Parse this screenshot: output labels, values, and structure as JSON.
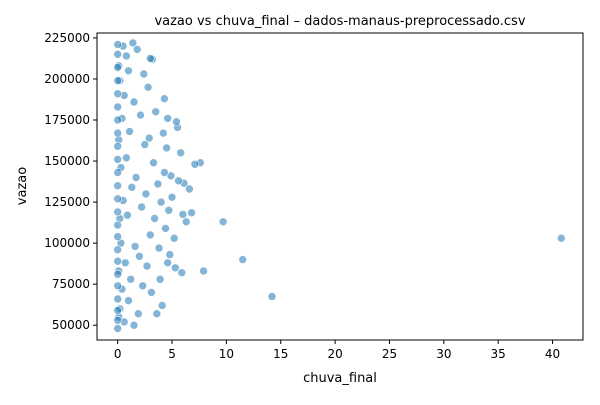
{
  "chart_data": {
    "type": "scatter",
    "title": "vazao vs chuva_final – dados-manaus-preprocessado.csv",
    "xlabel": "chuva_final",
    "ylabel": "vazao",
    "xlim": [
      -1.9,
      42.8
    ],
    "ylim": [
      41000,
      228000
    ],
    "xticks": [
      0,
      5,
      10,
      15,
      20,
      25,
      30,
      35,
      40
    ],
    "yticks": [
      50000,
      75000,
      100000,
      125000,
      150000,
      175000,
      200000,
      225000
    ],
    "grid": false,
    "color": "#1f77b4",
    "series": [
      {
        "points": [
          [
            40.8,
            103000
          ],
          [
            14.2,
            67500
          ],
          [
            11.5,
            90000
          ],
          [
            9.7,
            113000
          ],
          [
            7.9,
            83000
          ],
          [
            7.6,
            149000
          ],
          [
            7.1,
            148000
          ],
          [
            6.8,
            118500
          ],
          [
            6.6,
            133000
          ],
          [
            6.3,
            113000
          ],
          [
            6.1,
            136500
          ],
          [
            6.0,
            117500
          ],
          [
            5.9,
            82000
          ],
          [
            5.8,
            155000
          ],
          [
            5.6,
            138000
          ],
          [
            5.5,
            170500
          ],
          [
            5.4,
            174000
          ],
          [
            5.3,
            85000
          ],
          [
            5.2,
            103000
          ],
          [
            5.0,
            128000
          ],
          [
            4.9,
            141000
          ],
          [
            4.8,
            93000
          ],
          [
            4.7,
            120000
          ],
          [
            4.6,
            176000
          ],
          [
            4.6,
            88000
          ],
          [
            4.5,
            158000
          ],
          [
            4.4,
            109000
          ],
          [
            4.3,
            188000
          ],
          [
            4.3,
            143000
          ],
          [
            4.2,
            167000
          ],
          [
            4.1,
            62000
          ],
          [
            4.0,
            125000
          ],
          [
            3.9,
            78000
          ],
          [
            3.8,
            97000
          ],
          [
            3.7,
            136000
          ],
          [
            3.6,
            57000
          ],
          [
            3.5,
            180000
          ],
          [
            3.4,
            115000
          ],
          [
            3.3,
            149000
          ],
          [
            3.2,
            212000
          ],
          [
            3.1,
            70000
          ],
          [
            3.0,
            212500
          ],
          [
            3.0,
            105000
          ],
          [
            2.9,
            164000
          ],
          [
            2.8,
            195000
          ],
          [
            2.7,
            86000
          ],
          [
            2.6,
            130000
          ],
          [
            2.5,
            160000
          ],
          [
            2.4,
            203000
          ],
          [
            2.3,
            74000
          ],
          [
            2.2,
            122000
          ],
          [
            2.1,
            178000
          ],
          [
            2.0,
            92000
          ],
          [
            1.9,
            57000
          ],
          [
            1.8,
            218000
          ],
          [
            1.7,
            140000
          ],
          [
            1.6,
            98000
          ],
          [
            1.5,
            50000
          ],
          [
            1.5,
            186000
          ],
          [
            1.4,
            222000
          ],
          [
            1.3,
            134000
          ],
          [
            1.2,
            78000
          ],
          [
            1.1,
            168000
          ],
          [
            1.0,
            205000
          ],
          [
            1.0,
            65000
          ],
          [
            0.9,
            117000
          ],
          [
            0.8,
            152000
          ],
          [
            0.8,
            214000
          ],
          [
            0.7,
            88000
          ],
          [
            0.6,
            190000
          ],
          [
            0.6,
            52000
          ],
          [
            0.5,
            126000
          ],
          [
            0.5,
            220000
          ],
          [
            0.4,
            72000
          ],
          [
            0.4,
            176000
          ],
          [
            0.3,
            100000
          ],
          [
            0.3,
            146000
          ],
          [
            0.2,
            60000
          ],
          [
            0.2,
            199000
          ],
          [
            0.2,
            115000
          ],
          [
            0.1,
            83000
          ],
          [
            0.1,
            163000
          ],
          [
            0.1,
            55000
          ],
          [
            0.1,
            208000
          ],
          [
            0,
            48000
          ],
          [
            0,
            53000
          ],
          [
            0,
            59000
          ],
          [
            0,
            66000
          ],
          [
            0,
            74000
          ],
          [
            0,
            81000
          ],
          [
            0,
            89000
          ],
          [
            0,
            96000
          ],
          [
            0,
            104000
          ],
          [
            0,
            111000
          ],
          [
            0,
            119000
          ],
          [
            0,
            127000
          ],
          [
            0,
            135000
          ],
          [
            0,
            143000
          ],
          [
            0,
            151000
          ],
          [
            0,
            159000
          ],
          [
            0,
            167000
          ],
          [
            0,
            175000
          ],
          [
            0,
            183000
          ],
          [
            0,
            191000
          ],
          [
            0,
            199000
          ],
          [
            0,
            207000
          ],
          [
            0,
            215000
          ],
          [
            0,
            221000
          ]
        ]
      }
    ]
  }
}
